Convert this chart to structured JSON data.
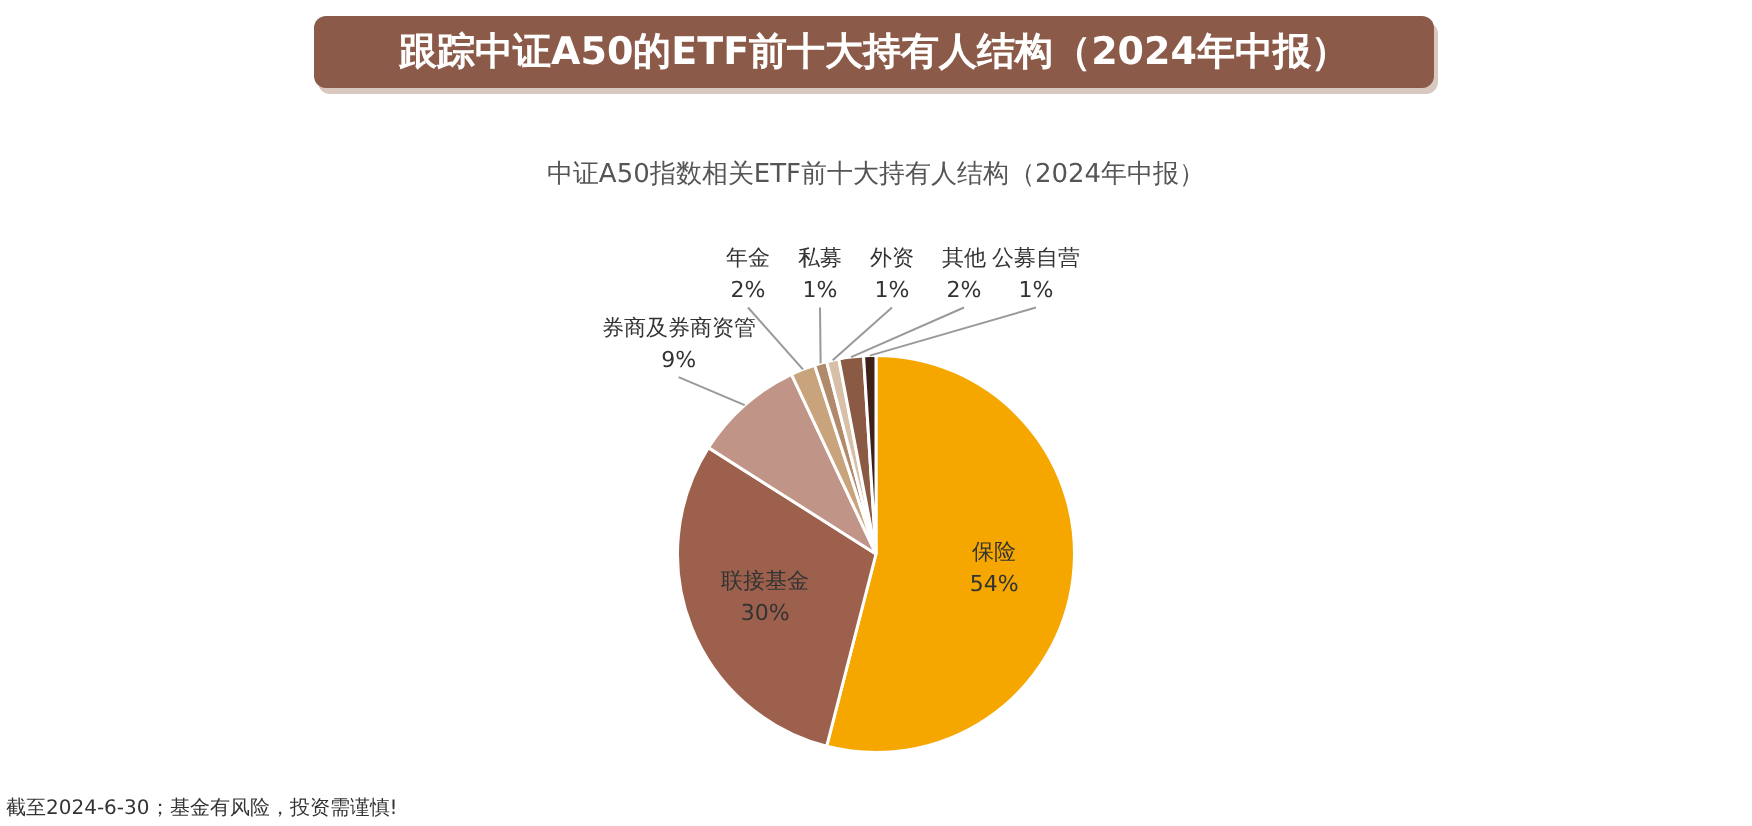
{
  "chart_data": {
    "type": "pie",
    "title": "跟踪中证A50的ETF前十大持有人结构（2024年中报）",
    "subtitle": "中证A50指数相关ETF前十大持有人结构（2024年中报）",
    "categories": [
      "保险",
      "联接基金",
      "券商及券商资管",
      "年金",
      "私募",
      "外资",
      "其他",
      "公募自营"
    ],
    "values": [
      54,
      30,
      9,
      2,
      1,
      1,
      2,
      1
    ],
    "colors": [
      "#f5a700",
      "#9c604c",
      "#c09486",
      "#c9a37c",
      "#b08a6a",
      "#d8c0a8",
      "#8a5a44",
      "#3e2219"
    ],
    "value_labels": [
      "54%",
      "30%",
      "9%",
      "2%",
      "1%",
      "1%",
      "2%",
      "1%"
    ],
    "legend": false,
    "annotations": [
      "截至2024-6-30；基金有风险，投资需谨慎!"
    ]
  }
}
